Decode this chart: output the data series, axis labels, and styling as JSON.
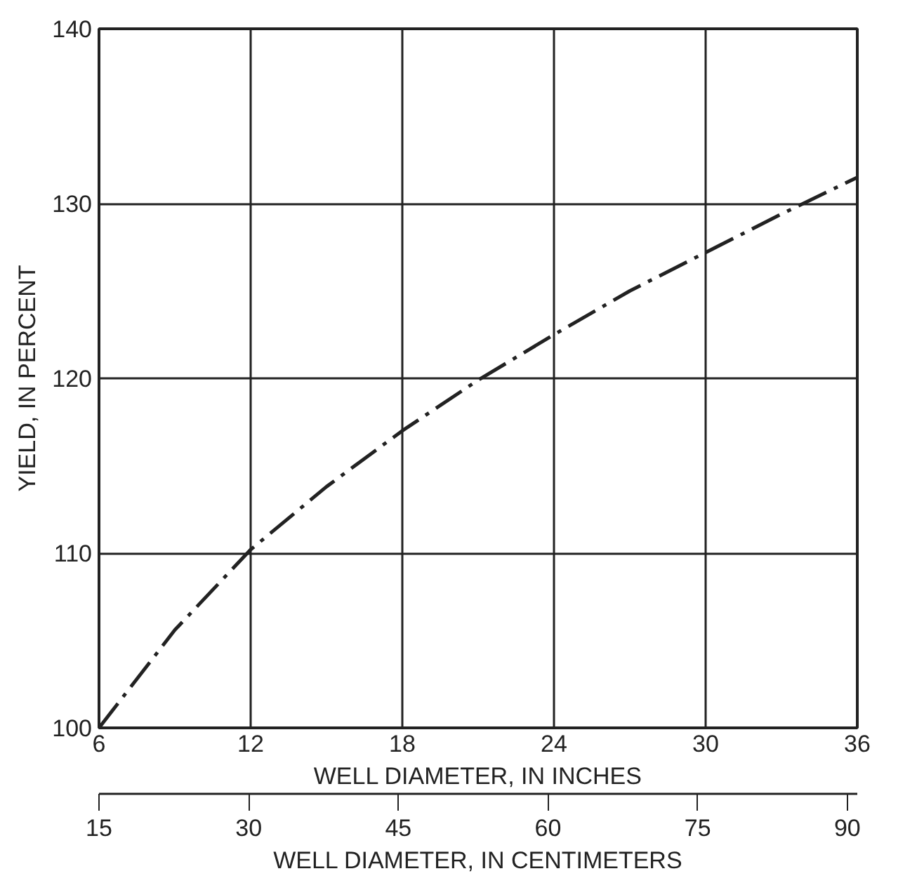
{
  "chart_data": {
    "type": "line",
    "xlabel": "WELL DIAMETER, IN INCHES",
    "ylabel": "YIELD, IN PERCENT",
    "x2label": "WELL DIAMETER, IN CENTIMETERS",
    "x": [
      6,
      9,
      12,
      15,
      18,
      21,
      24,
      27,
      30,
      33,
      36
    ],
    "series": [
      {
        "color": "#222222",
        "values": [
          100,
          105.6,
          110.2,
          113.8,
          117,
          119.9,
          122.5,
          125,
          127.2,
          129.4,
          131.5
        ]
      }
    ],
    "xlim": [
      6,
      36
    ],
    "xticks": [
      6,
      12,
      18,
      24,
      30,
      36
    ],
    "ylim": [
      100,
      140
    ],
    "yticks": [
      100,
      110,
      120,
      130,
      140
    ],
    "x2lim": [
      15,
      91
    ],
    "x2ticks": [
      15,
      30,
      45,
      60,
      75,
      90
    ],
    "grid": true,
    "marker": "none",
    "line_style": "dashed"
  }
}
